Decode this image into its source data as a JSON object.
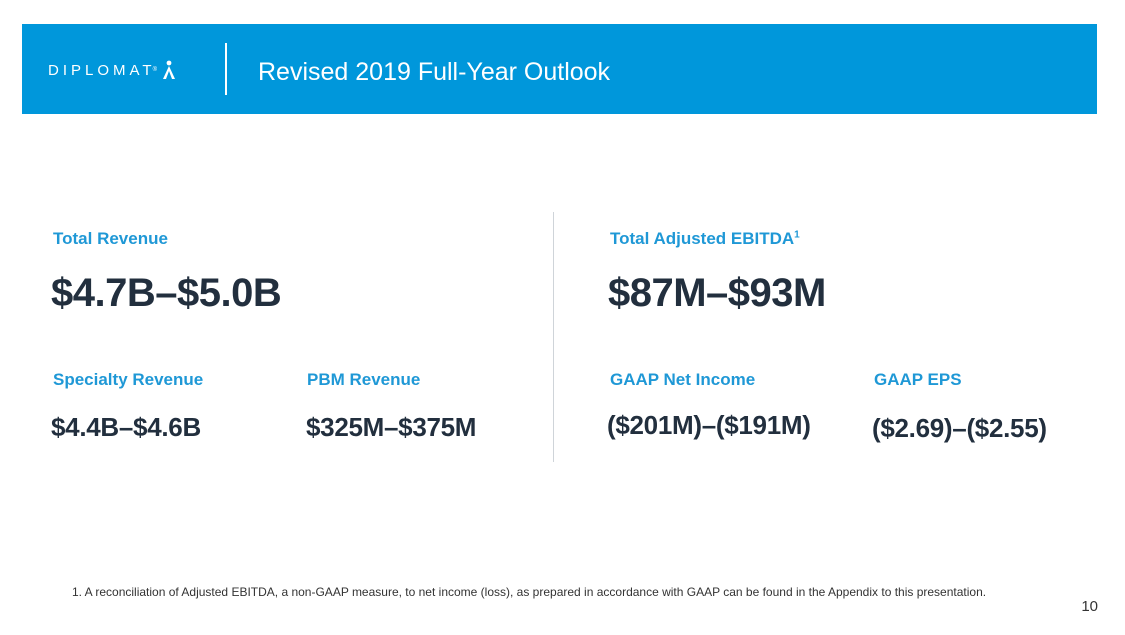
{
  "header": {
    "logo_text": "DIPLOMAT",
    "logo_reg": "®",
    "title": "Revised 2019 Full-Year Outlook"
  },
  "left": {
    "total_revenue": {
      "label": "Total Revenue",
      "value": "$4.7B–$5.0B"
    },
    "specialty_revenue": {
      "label": "Specialty Revenue",
      "value": "$4.4B–$4.6B"
    },
    "pbm_revenue": {
      "label": "PBM Revenue",
      "value": "$325M–$375M"
    }
  },
  "right": {
    "adjusted_ebitda": {
      "label": "Total Adjusted EBITDA",
      "footnote_ref": "1",
      "value": "$87M–$93M"
    },
    "gaap_net_income": {
      "label": "GAAP Net Income",
      "value": "($201M)–($191M)"
    },
    "gaap_eps": {
      "label": "GAAP EPS",
      "value": "($2.69)–($2.55)"
    }
  },
  "footnote": "1. A reconciliation of Adjusted EBITDA, a non-GAAP measure, to net income (loss), as prepared in accordance with GAAP can be found in the Appendix to this presentation.",
  "page_number": "10",
  "colors": {
    "banner": "#0097db",
    "label": "#1f98d6",
    "value": "#222f3e"
  }
}
